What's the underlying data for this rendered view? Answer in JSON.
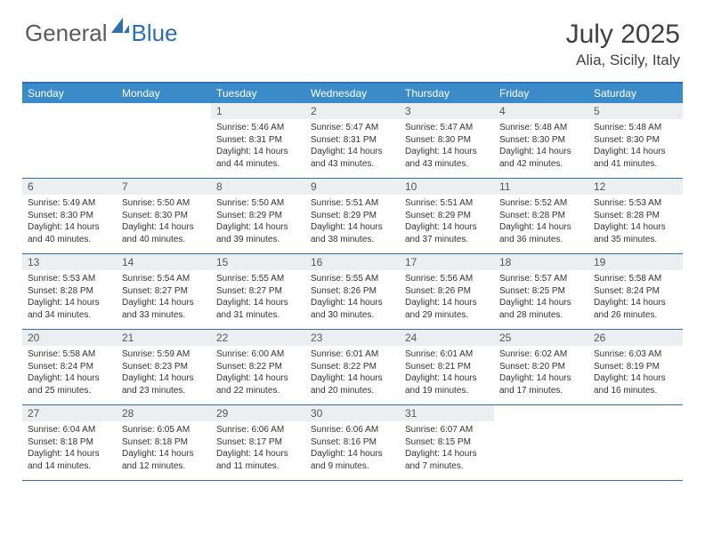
{
  "logo": {
    "text_gray": "General",
    "text_blue": "Blue"
  },
  "title": "July 2025",
  "location": "Alia, Sicily, Italy",
  "colors": {
    "header_bg": "#3b8bc9",
    "border": "#2f6fb0",
    "daynum_bg": "#eceff1",
    "text_gray": "#5a5a5a",
    "text_blue": "#2f6fb0"
  },
  "day_labels": [
    "Sunday",
    "Monday",
    "Tuesday",
    "Wednesday",
    "Thursday",
    "Friday",
    "Saturday"
  ],
  "weeks": [
    [
      {
        "n": "",
        "sr": "",
        "ss": "",
        "dl": ""
      },
      {
        "n": "",
        "sr": "",
        "ss": "",
        "dl": ""
      },
      {
        "n": "1",
        "sr": "Sunrise: 5:46 AM",
        "ss": "Sunset: 8:31 PM",
        "dl": "Daylight: 14 hours and 44 minutes."
      },
      {
        "n": "2",
        "sr": "Sunrise: 5:47 AM",
        "ss": "Sunset: 8:31 PM",
        "dl": "Daylight: 14 hours and 43 minutes."
      },
      {
        "n": "3",
        "sr": "Sunrise: 5:47 AM",
        "ss": "Sunset: 8:30 PM",
        "dl": "Daylight: 14 hours and 43 minutes."
      },
      {
        "n": "4",
        "sr": "Sunrise: 5:48 AM",
        "ss": "Sunset: 8:30 PM",
        "dl": "Daylight: 14 hours and 42 minutes."
      },
      {
        "n": "5",
        "sr": "Sunrise: 5:48 AM",
        "ss": "Sunset: 8:30 PM",
        "dl": "Daylight: 14 hours and 41 minutes."
      }
    ],
    [
      {
        "n": "6",
        "sr": "Sunrise: 5:49 AM",
        "ss": "Sunset: 8:30 PM",
        "dl": "Daylight: 14 hours and 40 minutes."
      },
      {
        "n": "7",
        "sr": "Sunrise: 5:50 AM",
        "ss": "Sunset: 8:30 PM",
        "dl": "Daylight: 14 hours and 40 minutes."
      },
      {
        "n": "8",
        "sr": "Sunrise: 5:50 AM",
        "ss": "Sunset: 8:29 PM",
        "dl": "Daylight: 14 hours and 39 minutes."
      },
      {
        "n": "9",
        "sr": "Sunrise: 5:51 AM",
        "ss": "Sunset: 8:29 PM",
        "dl": "Daylight: 14 hours and 38 minutes."
      },
      {
        "n": "10",
        "sr": "Sunrise: 5:51 AM",
        "ss": "Sunset: 8:29 PM",
        "dl": "Daylight: 14 hours and 37 minutes."
      },
      {
        "n": "11",
        "sr": "Sunrise: 5:52 AM",
        "ss": "Sunset: 8:28 PM",
        "dl": "Daylight: 14 hours and 36 minutes."
      },
      {
        "n": "12",
        "sr": "Sunrise: 5:53 AM",
        "ss": "Sunset: 8:28 PM",
        "dl": "Daylight: 14 hours and 35 minutes."
      }
    ],
    [
      {
        "n": "13",
        "sr": "Sunrise: 5:53 AM",
        "ss": "Sunset: 8:28 PM",
        "dl": "Daylight: 14 hours and 34 minutes."
      },
      {
        "n": "14",
        "sr": "Sunrise: 5:54 AM",
        "ss": "Sunset: 8:27 PM",
        "dl": "Daylight: 14 hours and 33 minutes."
      },
      {
        "n": "15",
        "sr": "Sunrise: 5:55 AM",
        "ss": "Sunset: 8:27 PM",
        "dl": "Daylight: 14 hours and 31 minutes."
      },
      {
        "n": "16",
        "sr": "Sunrise: 5:55 AM",
        "ss": "Sunset: 8:26 PM",
        "dl": "Daylight: 14 hours and 30 minutes."
      },
      {
        "n": "17",
        "sr": "Sunrise: 5:56 AM",
        "ss": "Sunset: 8:26 PM",
        "dl": "Daylight: 14 hours and 29 minutes."
      },
      {
        "n": "18",
        "sr": "Sunrise: 5:57 AM",
        "ss": "Sunset: 8:25 PM",
        "dl": "Daylight: 14 hours and 28 minutes."
      },
      {
        "n": "19",
        "sr": "Sunrise: 5:58 AM",
        "ss": "Sunset: 8:24 PM",
        "dl": "Daylight: 14 hours and 26 minutes."
      }
    ],
    [
      {
        "n": "20",
        "sr": "Sunrise: 5:58 AM",
        "ss": "Sunset: 8:24 PM",
        "dl": "Daylight: 14 hours and 25 minutes."
      },
      {
        "n": "21",
        "sr": "Sunrise: 5:59 AM",
        "ss": "Sunset: 8:23 PM",
        "dl": "Daylight: 14 hours and 23 minutes."
      },
      {
        "n": "22",
        "sr": "Sunrise: 6:00 AM",
        "ss": "Sunset: 8:22 PM",
        "dl": "Daylight: 14 hours and 22 minutes."
      },
      {
        "n": "23",
        "sr": "Sunrise: 6:01 AM",
        "ss": "Sunset: 8:22 PM",
        "dl": "Daylight: 14 hours and 20 minutes."
      },
      {
        "n": "24",
        "sr": "Sunrise: 6:01 AM",
        "ss": "Sunset: 8:21 PM",
        "dl": "Daylight: 14 hours and 19 minutes."
      },
      {
        "n": "25",
        "sr": "Sunrise: 6:02 AM",
        "ss": "Sunset: 8:20 PM",
        "dl": "Daylight: 14 hours and 17 minutes."
      },
      {
        "n": "26",
        "sr": "Sunrise: 6:03 AM",
        "ss": "Sunset: 8:19 PM",
        "dl": "Daylight: 14 hours and 16 minutes."
      }
    ],
    [
      {
        "n": "27",
        "sr": "Sunrise: 6:04 AM",
        "ss": "Sunset: 8:18 PM",
        "dl": "Daylight: 14 hours and 14 minutes."
      },
      {
        "n": "28",
        "sr": "Sunrise: 6:05 AM",
        "ss": "Sunset: 8:18 PM",
        "dl": "Daylight: 14 hours and 12 minutes."
      },
      {
        "n": "29",
        "sr": "Sunrise: 6:06 AM",
        "ss": "Sunset: 8:17 PM",
        "dl": "Daylight: 14 hours and 11 minutes."
      },
      {
        "n": "30",
        "sr": "Sunrise: 6:06 AM",
        "ss": "Sunset: 8:16 PM",
        "dl": "Daylight: 14 hours and 9 minutes."
      },
      {
        "n": "31",
        "sr": "Sunrise: 6:07 AM",
        "ss": "Sunset: 8:15 PM",
        "dl": "Daylight: 14 hours and 7 minutes."
      },
      {
        "n": "",
        "sr": "",
        "ss": "",
        "dl": ""
      },
      {
        "n": "",
        "sr": "",
        "ss": "",
        "dl": ""
      }
    ]
  ]
}
